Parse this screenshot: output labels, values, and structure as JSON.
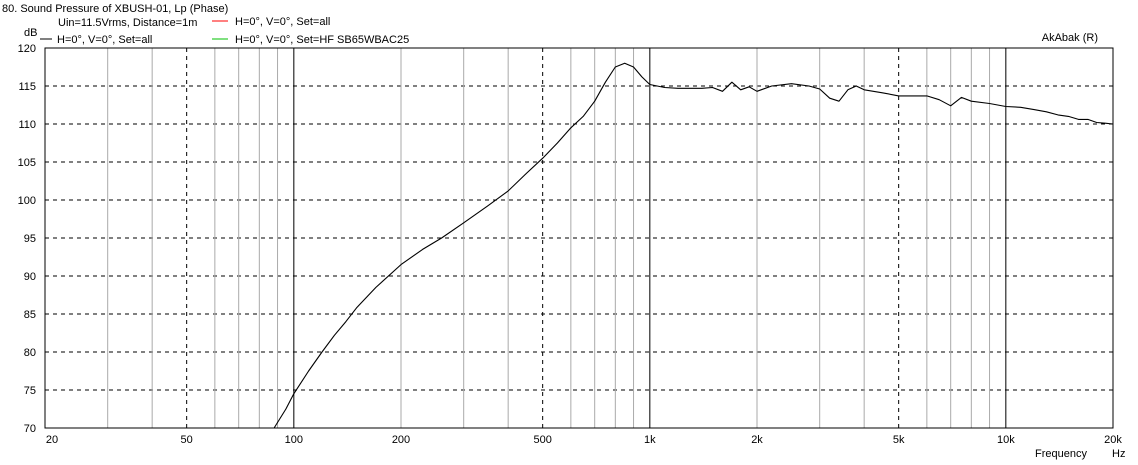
{
  "chart_data": {
    "type": "line",
    "title": "80. Sound Pressure of XBUSH-01, Lp (Phase)",
    "info": "Uin=11.5Vrms, Distance=1m",
    "watermark": "AkAbak (R)",
    "ylabel": "dB",
    "xlabel": "Frequency",
    "xunit": "Hz",
    "x_scale": "log",
    "xlim": [
      20,
      20000
    ],
    "ylim": [
      70,
      120
    ],
    "grid": true,
    "x_ticks": [
      {
        "value": 20,
        "label": "20"
      },
      {
        "value": 50,
        "label": "50"
      },
      {
        "value": 100,
        "label": "100"
      },
      {
        "value": 200,
        "label": "200"
      },
      {
        "value": 500,
        "label": "500"
      },
      {
        "value": 1000,
        "label": "1k"
      },
      {
        "value": 2000,
        "label": "2k"
      },
      {
        "value": 5000,
        "label": "5k"
      },
      {
        "value": 10000,
        "label": "10k"
      },
      {
        "value": 20000,
        "label": "20k"
      }
    ],
    "y_ticks": [
      70,
      75,
      80,
      85,
      90,
      95,
      100,
      105,
      110,
      115,
      120
    ],
    "legend": [
      {
        "label": "H=0°, V=0°, Set=all",
        "color": "#000000"
      },
      {
        "label": "H=0°, V=0°, Set=all",
        "color": "#ff0000"
      },
      {
        "label": "H=0°, V=0°, Set=HF SB65WBAC25",
        "color": "#00c000"
      }
    ],
    "series": [
      {
        "name": "H=0°, V=0°, Set=all",
        "color": "#000000",
        "points": [
          [
            20,
            70
          ],
          [
            88,
            70
          ],
          [
            95,
            72.5
          ],
          [
            100,
            74.5
          ],
          [
            110,
            77.5
          ],
          [
            120,
            80
          ],
          [
            130,
            82.2
          ],
          [
            140,
            84
          ],
          [
            150,
            85.8
          ],
          [
            170,
            88.5
          ],
          [
            200,
            91.5
          ],
          [
            230,
            93.5
          ],
          [
            260,
            95
          ],
          [
            300,
            97
          ],
          [
            350,
            99.2
          ],
          [
            400,
            101.2
          ],
          [
            450,
            103.5
          ],
          [
            500,
            105.5
          ],
          [
            550,
            107.5
          ],
          [
            600,
            109.5
          ],
          [
            650,
            111
          ],
          [
            700,
            113
          ],
          [
            750,
            115.5
          ],
          [
            800,
            117.5
          ],
          [
            850,
            118
          ],
          [
            900,
            117.5
          ],
          [
            950,
            116.2
          ],
          [
            1000,
            115.2
          ],
          [
            1100,
            114.8
          ],
          [
            1200,
            114.7
          ],
          [
            1300,
            114.7
          ],
          [
            1400,
            114.7
          ],
          [
            1500,
            114.8
          ],
          [
            1600,
            114.3
          ],
          [
            1700,
            115.5
          ],
          [
            1800,
            114.5
          ],
          [
            1900,
            114.9
          ],
          [
            2000,
            114.3
          ],
          [
            2200,
            115
          ],
          [
            2500,
            115.3
          ],
          [
            2800,
            115
          ],
          [
            3000,
            114.6
          ],
          [
            3200,
            113.4
          ],
          [
            3400,
            113
          ],
          [
            3600,
            114.5
          ],
          [
            3800,
            115
          ],
          [
            4000,
            114.5
          ],
          [
            4500,
            114.1
          ],
          [
            5000,
            113.7
          ],
          [
            5500,
            113.7
          ],
          [
            6000,
            113.7
          ],
          [
            6500,
            113.2
          ],
          [
            7000,
            112.4
          ],
          [
            7500,
            113.5
          ],
          [
            8000,
            113
          ],
          [
            9000,
            112.7
          ],
          [
            10000,
            112.3
          ],
          [
            11000,
            112.2
          ],
          [
            12000,
            111.9
          ],
          [
            13000,
            111.6
          ],
          [
            14000,
            111.2
          ],
          [
            15000,
            111
          ],
          [
            16000,
            110.6
          ],
          [
            17000,
            110.6
          ],
          [
            18000,
            110.2
          ],
          [
            19000,
            110.1
          ],
          [
            20000,
            110
          ]
        ]
      }
    ]
  }
}
